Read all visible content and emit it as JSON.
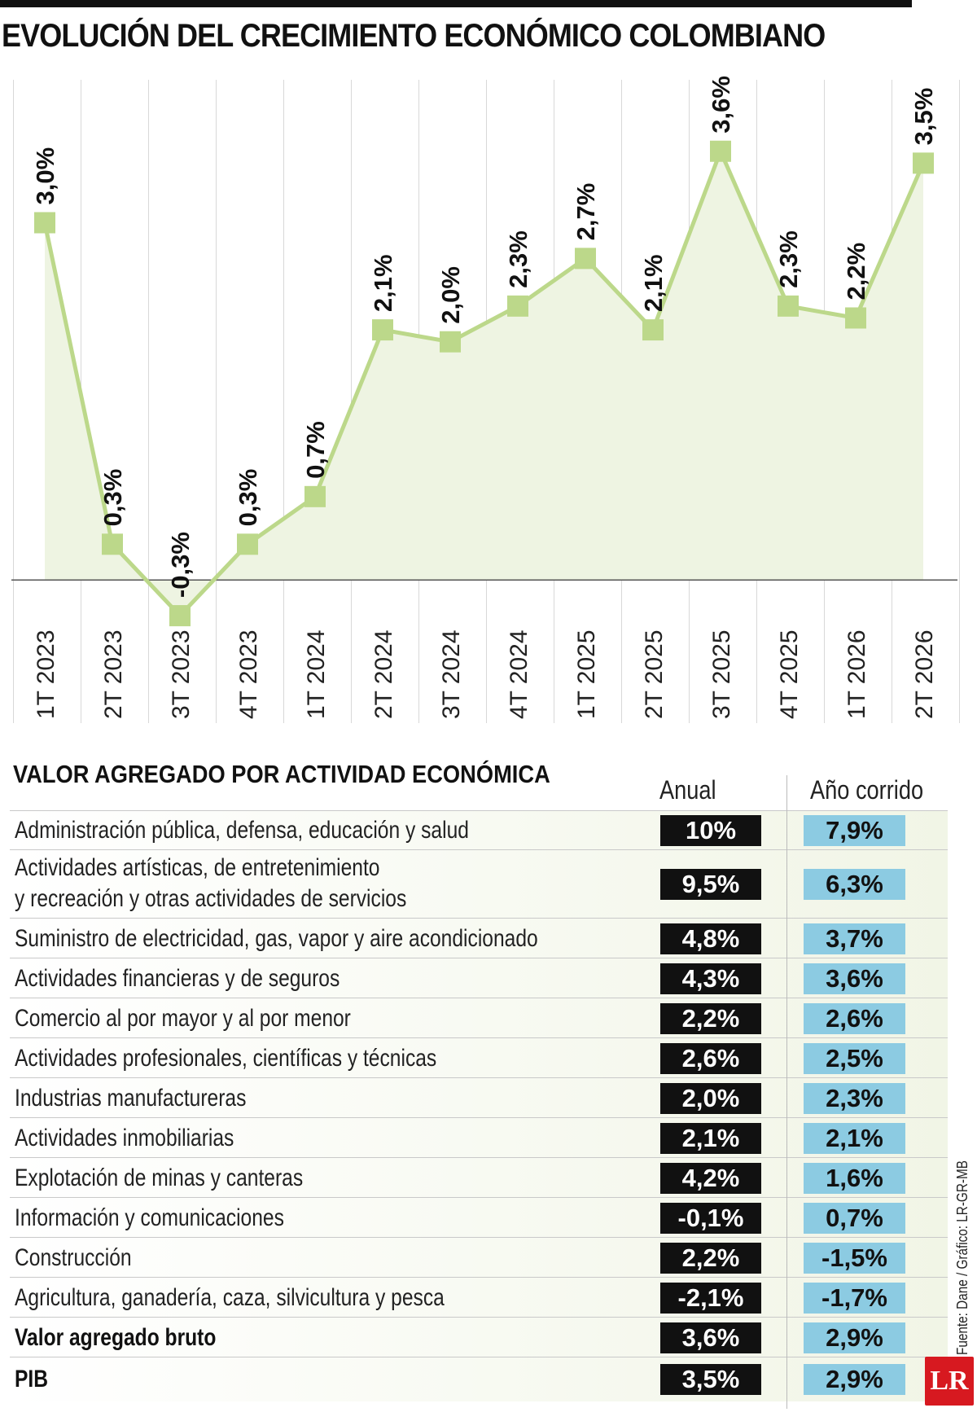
{
  "title": "EVOLUCIÓN DEL CRECIMIENTO ECONÓMICO COLOMBIANO",
  "chart_data": {
    "type": "line",
    "title": "EVOLUCIÓN DEL CRECIMIENTO ECONÓMICO COLOMBIANO",
    "categories": [
      "1T 2023",
      "2T 2023",
      "3T 2023",
      "4T 2023",
      "1T 2024",
      "2T 2024",
      "3T 2024",
      "4T 2024",
      "1T 2025",
      "2T 2025",
      "3T 2025",
      "4T 2025",
      "1T 2026",
      "2T 2026"
    ],
    "values": [
      3.0,
      0.3,
      -0.3,
      0.3,
      0.7,
      2.1,
      2.0,
      2.3,
      2.7,
      2.1,
      3.6,
      2.3,
      2.2,
      3.5
    ],
    "labels": [
      "3,0%",
      "0,3%",
      "-0,3%",
      "0,3%",
      "0,7%",
      "2,1%",
      "2,0%",
      "2,3%",
      "2,7%",
      "2,1%",
      "3,6%",
      "2,3%",
      "2,2%",
      "3,5%"
    ],
    "ylim": [
      -0.45,
      4.2
    ],
    "line_color": "#bcd88a",
    "fill_color": "#eef4e2",
    "grid": true
  },
  "table": {
    "title": "VALOR AGREGADO POR ACTIVIDAD ECONÓMICA",
    "col_anual": "Anual",
    "col_corrido": "Año corrido",
    "rows": [
      {
        "name": "Administración pública, defensa, educación y salud",
        "anual": "10%",
        "corrido": "7,9%"
      },
      {
        "name": "Actividades artísticas, de entretenimiento",
        "name2": "y recreación y otras actividades de servicios",
        "anual": "9,5%",
        "corrido": "6,3%"
      },
      {
        "name": "Suministro de electricidad, gas, vapor y aire acondicionado",
        "anual": "4,8%",
        "corrido": "3,7%"
      },
      {
        "name": "Actividades financieras y de seguros",
        "anual": "4,3%",
        "corrido": "3,6%"
      },
      {
        "name": "Comercio al por mayor y al por menor",
        "anual": "2,2%",
        "corrido": "2,6%"
      },
      {
        "name": "Actividades profesionales, científicas y técnicas",
        "anual": "2,6%",
        "corrido": "2,5%"
      },
      {
        "name": "Industrias manufactureras",
        "anual": "2,0%",
        "corrido": "2,3%"
      },
      {
        "name": "Actividades inmobiliarias",
        "anual": "2,1%",
        "corrido": "2,1%"
      },
      {
        "name": "Explotación de minas y canteras",
        "anual": "4,2%",
        "corrido": "1,6%"
      },
      {
        "name": "Información y comunicaciones",
        "anual": "-0,1%",
        "corrido": "0,7%"
      },
      {
        "name": "Construcción",
        "anual": "2,2%",
        "corrido": "-1,5%"
      },
      {
        "name": "Agricultura, ganadería, caza, silvicultura y pesca",
        "anual": "-2,1%",
        "corrido": "-1,7%"
      },
      {
        "name": "Valor agregado bruto",
        "anual": "3,6%",
        "corrido": "2,9%",
        "bold": true
      },
      {
        "name": "PIB",
        "anual": "3,5%",
        "corrido": "2,9%",
        "bold": true
      }
    ]
  },
  "source": "Fuente: Dane / Gráfico: LR-GR-MB",
  "logo": "LR"
}
